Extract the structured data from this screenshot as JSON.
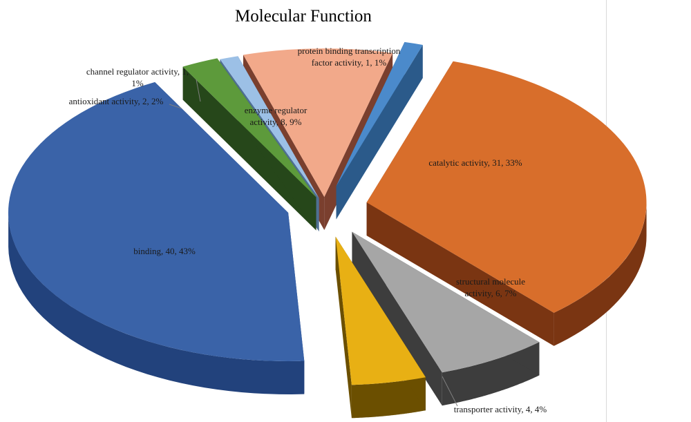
{
  "chart_data": {
    "type": "pie",
    "title": "Molecular Function",
    "slices": [
      {
        "label": "catalytic activity, 31, 33%",
        "category": "catalytic activity",
        "value": 31,
        "percent": 33,
        "color": "#d86e2b",
        "side": "#7a3512"
      },
      {
        "label": "structural molecule activity, 6, 7%",
        "category": "structural molecule activity",
        "value": 6,
        "percent": 7,
        "color": "#a6a6a6",
        "side": "#3d3d3d"
      },
      {
        "label": "transporter activity, 4, 4%",
        "category": "transporter activity",
        "value": 4,
        "percent": 4,
        "color": "#e8b014",
        "side": "#6b4f00"
      },
      {
        "label": "binding, 40, 43%",
        "category": "binding",
        "value": 40,
        "percent": 43,
        "color": "#3a63a8",
        "side": "#22427c"
      },
      {
        "label": "antioxidant activity, 2, 2%",
        "category": "antioxidant activity",
        "value": 2,
        "percent": 2,
        "color": "#5d9a3b",
        "side": "#26471a"
      },
      {
        "label": "channel regulator activity, 1, 1%",
        "category": "channel regulator activity",
        "value": 1,
        "percent": 1,
        "color": "#9cc0e6",
        "side": "#4f6f93"
      },
      {
        "label": "enzyme regulator activity, 8, 9%",
        "category": "enzyme regulator activity",
        "value": 8,
        "percent": 9,
        "color": "#f2a98a",
        "side": "#7a3f2e"
      },
      {
        "label": "protein binding transcription factor activity, 1, 1%",
        "category": "protein binding transcription factor activity",
        "value": 1,
        "percent": 1,
        "color": "#4b8acb",
        "side": "#2b5a8a"
      }
    ],
    "legend": "none",
    "style": "3d exploded pie with data labels"
  }
}
